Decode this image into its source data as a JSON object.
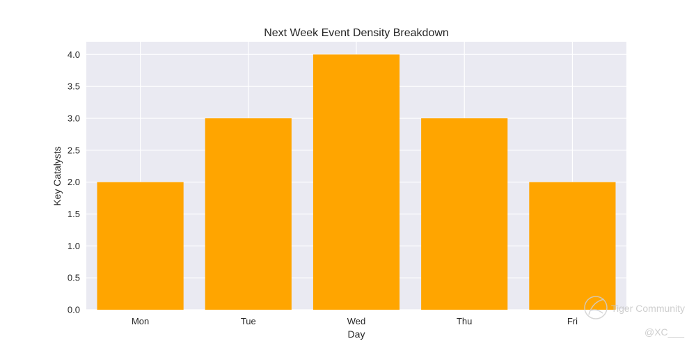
{
  "chart_data": {
    "type": "bar",
    "title": "Next Week Event Density Breakdown",
    "xlabel": "Day",
    "ylabel": "Key Catalysts",
    "categories": [
      "Mon",
      "Tue",
      "Wed",
      "Thu",
      "Fri"
    ],
    "values": [
      2,
      3,
      4,
      3,
      2
    ],
    "ylim": [
      0,
      4.2
    ],
    "yticks": [
      "0.0",
      "0.5",
      "1.0",
      "1.5",
      "2.0",
      "2.5",
      "3.0",
      "3.5",
      "4.0"
    ],
    "bar_color": "#ffa500",
    "plot_background": "#eaeaf2",
    "grid": true
  },
  "watermark": {
    "brand": "Tiger Community",
    "handle": "@XC___"
  }
}
